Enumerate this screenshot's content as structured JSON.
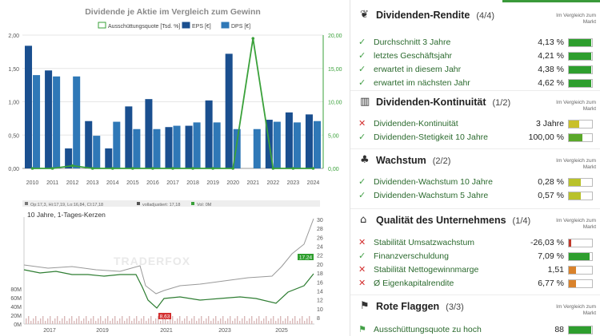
{
  "chart_data": [
    {
      "type": "bar",
      "title": "Dividende je Aktie im Vergleich zum Gewinn",
      "legend": [
        "Ausschüttungsquote [Tsd. %]",
        "EPS [€]",
        "DPS [€]"
      ],
      "categories": [
        "2010",
        "2011",
        "2012",
        "2013",
        "2014",
        "2015",
        "2016",
        "2017",
        "2018",
        "2019",
        "2020",
        "2021",
        "2022",
        "2023",
        "2024"
      ],
      "series": [
        {
          "name": "EPS [€]",
          "color": "#1a4f8f",
          "values": [
            1.84,
            1.47,
            0.3,
            0.71,
            0.3,
            0.93,
            1.04,
            0.62,
            0.64,
            1.02,
            1.72,
            0.0,
            0.73,
            0.84,
            0.81
          ]
        },
        {
          "name": "DPS [€]",
          "color": "#2f78b7",
          "values": [
            1.4,
            1.38,
            1.38,
            0.49,
            0.7,
            0.59,
            0.59,
            0.64,
            0.69,
            0.69,
            0.59,
            0.59,
            0.7,
            0.69,
            0.71
          ]
        },
        {
          "name": "Ausschüttungsquote [Tsd. %]",
          "color": "#3aa13a",
          "values": [
            0.0,
            0.0,
            0.4,
            0.0,
            0.0,
            0.0,
            0.0,
            0.0,
            0.0,
            0.0,
            0.0,
            19.5,
            0.0,
            0.0,
            0.0
          ]
        }
      ],
      "y_left": {
        "min": 0,
        "max": 2.0,
        "ticks": [
          "0,00",
          "0,50",
          "1,00",
          "1,50",
          "2,00"
        ]
      },
      "y_right": {
        "min": 0,
        "max": 20,
        "ticks": [
          "0,00",
          "5,00",
          "10,00",
          "15,00",
          "20,00"
        ]
      }
    },
    {
      "type": "line",
      "title": "10 Jahre, 1-Tages-Kerzen",
      "header": [
        "Op:17,3, Hi:17,19, Lo:16,84, Cl:17,18",
        "volladjustiert: 17,18",
        "Vol: 0M"
      ],
      "watermark": "TRADERFOX",
      "x_ticks": [
        "2017",
        "2019",
        "2021",
        "2023",
        "2025"
      ],
      "y_right_ticks": [
        "8",
        "10",
        "12",
        "14",
        "16",
        "18",
        "20",
        "22",
        "24",
        "26",
        "28",
        "30"
      ],
      "vol_ticks": [
        "0M",
        "20M",
        "40M",
        "60M",
        "80M"
      ],
      "last_price_label": "17,24",
      "low_label": "8,63",
      "series": [
        {
          "name": "Kurs",
          "color": "#2e7d32"
        },
        {
          "name": "volladjustiert",
          "color": "#999999"
        }
      ]
    }
  ],
  "panel": {
    "vgl_label": "Im Vergleich zum Markt",
    "sections": [
      {
        "icon": "hand-coin-icon",
        "glyph": "❦",
        "title": "Dividenden-Rendite",
        "count": "(4/4)",
        "rows": [
          {
            "status": "ok",
            "label": "Durchschnitt 3 Jahre",
            "value": "4,13 %",
            "level": 0.95,
            "color": "#2e9e2e"
          },
          {
            "status": "ok",
            "label": "letztes Geschäftsjahr",
            "value": "4,21 %",
            "level": 0.95,
            "color": "#2e9e2e"
          },
          {
            "status": "ok",
            "label": "erwartet in diesem Jahr",
            "value": "4,38 %",
            "level": 0.95,
            "color": "#2e9e2e"
          },
          {
            "status": "ok",
            "label": "erwartet im nächsten Jahr",
            "value": "4,62 %",
            "level": 0.95,
            "color": "#2e9e2e"
          }
        ]
      },
      {
        "icon": "bar-chart-icon",
        "glyph": "▥",
        "title": "Dividenden-Kontinuität",
        "count": "(1/2)",
        "rows": [
          {
            "status": "bad",
            "label": "Dividenden-Kontinuität",
            "value": "3 Jahre",
            "level": 0.45,
            "color": "#c9c02a"
          },
          {
            "status": "ok",
            "label": "Dividenden-Stetigkeit 10 Jahre",
            "value": "100,00 %",
            "level": 0.6,
            "color": "#5aa82a"
          }
        ]
      },
      {
        "icon": "sprout-icon",
        "glyph": "♣",
        "title": "Wachstum",
        "count": "(2/2)",
        "rows": [
          {
            "status": "ok",
            "label": "Dividenden-Wachstum 10 Jahre",
            "value": "0,28 %",
            "level": 0.5,
            "color": "#b9c22a"
          },
          {
            "status": "ok",
            "label": "Dividenden-Wachstum 5 Jahre",
            "value": "0,57 %",
            "level": 0.5,
            "color": "#b9c22a"
          }
        ]
      },
      {
        "icon": "bank-icon",
        "glyph": "⌂",
        "title": "Qualität des Unternehmens",
        "count": "(1/4)",
        "rows": [
          {
            "status": "bad",
            "label": "Stabilität Umsatzwachstum",
            "value": "-26,03 %",
            "level": 0.1,
            "color": "#c0392b"
          },
          {
            "status": "ok",
            "label": "Finanzverschuldung",
            "value": "7,09 %",
            "level": 0.9,
            "color": "#2e9e2e"
          },
          {
            "status": "bad",
            "label": "Stabilität Nettogewinnmarge",
            "value": "1,51",
            "level": 0.3,
            "color": "#d9822b"
          },
          {
            "status": "bad",
            "label": "Ø Eigenkapitalrendite",
            "value": "6,77 %",
            "level": 0.3,
            "color": "#d9822b"
          }
        ]
      },
      {
        "icon": "flag-icon",
        "glyph": "⚑",
        "title": "Rote Flaggen",
        "count": "(3/3)",
        "rows": [
          {
            "status": "flag",
            "label": "Ausschüttungsquote zu hoch",
            "value": "88",
            "level": 0.95,
            "color": "#2e9e2e"
          }
        ]
      }
    ]
  }
}
